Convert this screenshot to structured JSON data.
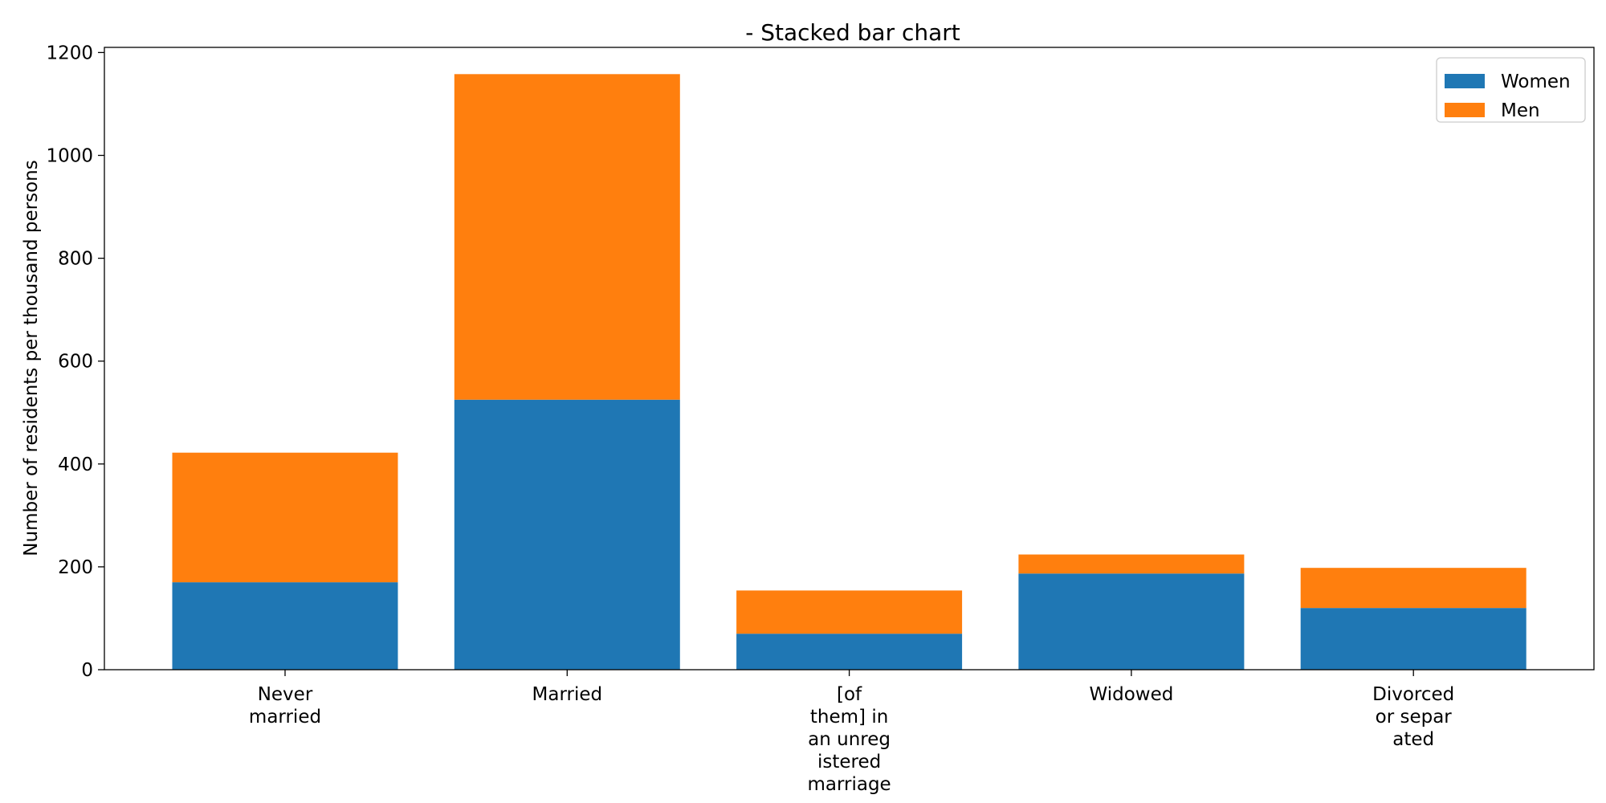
{
  "chart_data": {
    "type": "bar",
    "stacked": true,
    "title": "- Stacked bar chart",
    "xlabel": "",
    "ylabel": "Number of residents per thousand persons",
    "ylim": [
      0,
      1210
    ],
    "yticks": [
      0,
      200,
      400,
      600,
      800,
      1000,
      1200
    ],
    "grid": false,
    "legend_position": "top-right",
    "categories": [
      [
        "Never",
        "married"
      ],
      [
        "Married"
      ],
      [
        "[of",
        "them] in",
        "an unreg",
        "istered",
        "marriage"
      ],
      [
        "Widowed"
      ],
      [
        "Divorced",
        "or separ",
        "ated"
      ]
    ],
    "series": [
      {
        "name": "Women",
        "color": "#1f77b4",
        "values": [
          170,
          525,
          70,
          187,
          120
        ]
      },
      {
        "name": "Men",
        "color": "#ff7f0e",
        "values": [
          252,
          633,
          84,
          37,
          78
        ]
      }
    ]
  }
}
